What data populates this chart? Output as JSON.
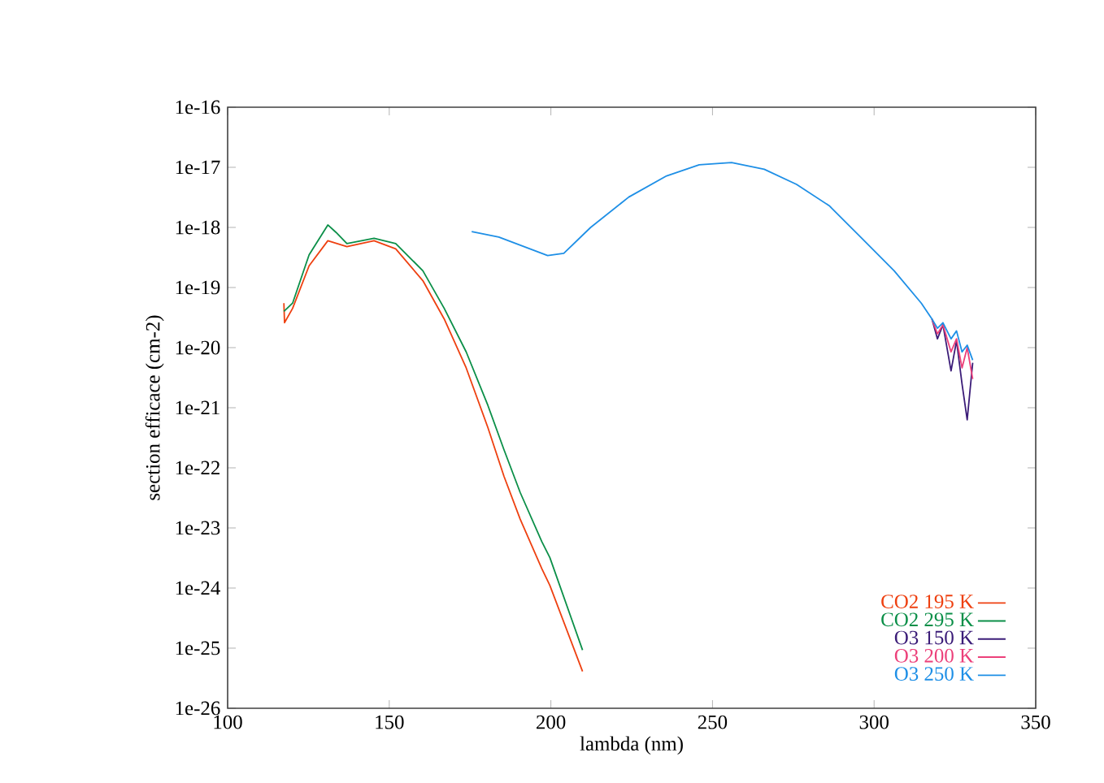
{
  "chart_data": {
    "type": "line",
    "xlabel": "lambda (nm)",
    "ylabel": "section efficace (cm-2)",
    "log": "y",
    "legend": "bottom right",
    "grid": false,
    "marker": "none",
    "line_style": "solid",
    "xlim": [
      100,
      350
    ],
    "xticks": [
      100,
      150,
      200,
      250,
      300,
      350
    ],
    "ylim": [
      1e-26,
      1e-16
    ],
    "yticks": [
      {
        "value": 1e-16,
        "label": "1e-16"
      },
      {
        "value": 1e-17,
        "label": "1e-17"
      },
      {
        "value": 1e-18,
        "label": "1e-18"
      },
      {
        "value": 1e-19,
        "label": "1e-19"
      },
      {
        "value": 1e-20,
        "label": "1e-20"
      },
      {
        "value": 1e-21,
        "label": "1e-21"
      },
      {
        "value": 1e-22,
        "label": "1e-22"
      },
      {
        "value": 1e-23,
        "label": "1e-23"
      },
      {
        "value": 1e-24,
        "label": "1e-24"
      },
      {
        "value": 1e-25,
        "label": "1e-25"
      },
      {
        "value": 1e-26,
        "label": "1e-26"
      }
    ],
    "series": [
      {
        "name": "CO2 195 K",
        "color": "#ee4010",
        "x": [
          117.4,
          117.6,
          120.1,
          125.2,
          131,
          136.9,
          145.3,
          152,
          160.4,
          167,
          173.8,
          180.5,
          185.5,
          190.5,
          197.2,
          199.7,
          209.8
        ],
        "values": [
          5.5e-20,
          2.6e-20,
          4.5e-20,
          2.3e-19,
          6e-19,
          4.8e-19,
          6e-19,
          4.4e-19,
          1.3e-19,
          3e-20,
          4.6e-21,
          4.7e-22,
          7.2e-23,
          1.4e-23,
          2.1e-24,
          1.1e-24,
          4.1e-26
        ]
      },
      {
        "name": "CO2 295 K",
        "color": "#0b8f48",
        "x": [
          117.4,
          120.1,
          125.2,
          131,
          133.5,
          136.9,
          145.3,
          152,
          160.4,
          167,
          173.8,
          180.5,
          185.5,
          190.5,
          197.2,
          199.7,
          209.8
        ],
        "values": [
          4e-20,
          5.5e-20,
          3.5e-19,
          1.1e-18,
          8.3e-19,
          5.4e-19,
          6.6e-19,
          5.4e-19,
          1.9e-19,
          4.5e-20,
          8.5e-21,
          1.1e-21,
          2e-22,
          3.9e-23,
          5.9e-24,
          3.2e-24,
          9.3e-26
        ]
      },
      {
        "name": "O3 150 K",
        "color": "#3b1c78",
        "x": [
          317.9,
          319.6,
          321.3,
          323.8,
          325.5,
          327.2,
          328.8,
          330.5
        ],
        "values": [
          3e-20,
          1.4e-20,
          2.4e-20,
          4.1e-21,
          1.3e-20,
          2.5e-21,
          6.3e-22,
          5.6e-21
        ]
      },
      {
        "name": "O3 200 K",
        "color": "#ec407a",
        "x": [
          317.9,
          319.6,
          321.3,
          323.8,
          325.5,
          327.2,
          328.8,
          330.5
        ],
        "values": [
          3e-20,
          1.7e-20,
          2.4e-20,
          8.5e-21,
          1.4e-20,
          4.6e-21,
          1e-20,
          3e-21
        ]
      },
      {
        "name": "O3 250 K",
        "color": "#1e8fe6",
        "x": [
          175.5,
          183.9,
          199,
          204,
          212.3,
          224.1,
          235.8,
          245.9,
          255.9,
          266,
          276,
          286.1,
          296.2,
          306.2,
          314.6,
          317.9,
          319.6,
          321.3,
          323.8,
          325.5,
          327.2,
          328.8,
          330.5
        ],
        "values": [
          8.5e-19,
          6.9e-19,
          3.4e-19,
          3.7e-19,
          1e-18,
          3.2e-18,
          7.2e-18,
          1.1e-17,
          1.2e-17,
          9.3e-18,
          5.2e-18,
          2.3e-18,
          6.6e-19,
          1.9e-19,
          5.5e-20,
          3e-20,
          2.1e-20,
          2.6e-20,
          1.4e-20,
          1.9e-20,
          8.5e-21,
          1.1e-20,
          6.2e-21
        ]
      }
    ]
  }
}
